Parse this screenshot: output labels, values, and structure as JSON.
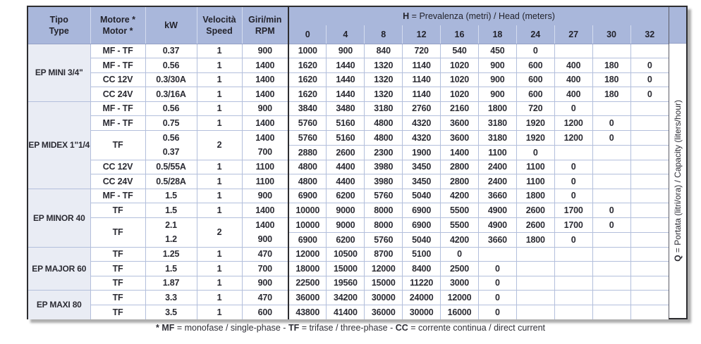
{
  "header": {
    "tipo": [
      "Tipo",
      "Type"
    ],
    "motore": [
      "Motore *",
      "Motor *"
    ],
    "kw": "kW",
    "velocita": [
      "Velocità",
      "Speed"
    ],
    "giri": [
      "Giri/min",
      "RPM"
    ],
    "head_title_bold": "H",
    "head_title_rest": " = Prevalenza (metri) / Head (meters)",
    "head_cols": [
      "0",
      "4",
      "8",
      "12",
      "16",
      "18",
      "24",
      "27",
      "30",
      "32"
    ]
  },
  "q_axis": {
    "bold": "Q",
    "rest": " = Portata (litri/ora) / Capacity (liters/hour)"
  },
  "sections": [
    {
      "name": "EP MINI 3/4\"",
      "rows": [
        {
          "motor": "MF - TF",
          "kw": "0.37",
          "speed": "1",
          "rpm": "900",
          "values": [
            "1000",
            "900",
            "840",
            "720",
            "540",
            "450",
            "0",
            "",
            "",
            ""
          ]
        },
        {
          "motor": "MF - TF",
          "kw": "0.56",
          "speed": "1",
          "rpm": "1400",
          "values": [
            "1620",
            "1440",
            "1320",
            "1140",
            "1020",
            "900",
            "600",
            "400",
            "180",
            "0"
          ]
        },
        {
          "motor": "CC 12V",
          "kw": "0.3/30A",
          "speed": "1",
          "rpm": "1400",
          "values": [
            "1620",
            "1440",
            "1320",
            "1140",
            "1020",
            "900",
            "600",
            "400",
            "180",
            "0"
          ]
        },
        {
          "motor": "CC 24V",
          "kw": "0.3/16A",
          "speed": "1",
          "rpm": "1400",
          "values": [
            "1620",
            "1440",
            "1320",
            "1140",
            "1020",
            "900",
            "600",
            "400",
            "180",
            "0"
          ]
        }
      ]
    },
    {
      "name": "EP MIDEX 1\"1/4",
      "rows": [
        {
          "motor": "MF - TF",
          "kw": "0.56",
          "speed": "1",
          "rpm": "900",
          "values": [
            "3840",
            "3480",
            "3180",
            "2760",
            "2160",
            "1800",
            "720",
            "0",
            "",
            ""
          ]
        },
        {
          "motor": "MF - TF",
          "kw": "0.75",
          "speed": "1",
          "rpm": "1400",
          "values": [
            "5760",
            "5160",
            "4800",
            "4320",
            "3600",
            "3180",
            "1920",
            "1200",
            "0",
            ""
          ]
        },
        {
          "dual": true,
          "motor": "TF",
          "kw": [
            "0.56",
            "0.37"
          ],
          "speed": "2",
          "rpm": [
            "1400",
            "700"
          ],
          "values_a": [
            "5760",
            "5160",
            "4800",
            "4320",
            "3600",
            "3180",
            "1920",
            "1200",
            "0",
            ""
          ],
          "values_b": [
            "2880",
            "2600",
            "2300",
            "1900",
            "1400",
            "1100",
            "0",
            "",
            "",
            ""
          ]
        },
        {
          "motor": "CC 12V",
          "kw": "0.5/55A",
          "speed": "1",
          "rpm": "1100",
          "values": [
            "4800",
            "4400",
            "3980",
            "3450",
            "2800",
            "2400",
            "1100",
            "0",
            "",
            ""
          ]
        },
        {
          "motor": "CC 24V",
          "kw": "0.5/28A",
          "speed": "1",
          "rpm": "1100",
          "values": [
            "4800",
            "4400",
            "3980",
            "3450",
            "2800",
            "2400",
            "1100",
            "0",
            "",
            ""
          ]
        }
      ]
    },
    {
      "name": "EP MINOR 40",
      "rows": [
        {
          "motor": "MF - TF",
          "kw": "1.5",
          "speed": "1",
          "rpm": "900",
          "values": [
            "6900",
            "6200",
            "5760",
            "5040",
            "4200",
            "3660",
            "1800",
            "0",
            "",
            ""
          ]
        },
        {
          "motor": "TF",
          "kw": "1.5",
          "speed": "1",
          "rpm": "1400",
          "values": [
            "10000",
            "9000",
            "8000",
            "6900",
            "5500",
            "4900",
            "2600",
            "1700",
            "0",
            ""
          ]
        },
        {
          "dual": true,
          "motor": "TF",
          "kw": [
            "2.1",
            "1.2"
          ],
          "speed": "2",
          "rpm": [
            "1400",
            "900"
          ],
          "values_a": [
            "10000",
            "9000",
            "8000",
            "6900",
            "5500",
            "4900",
            "2600",
            "1700",
            "0",
            ""
          ],
          "values_b": [
            "6900",
            "6200",
            "5760",
            "5040",
            "4200",
            "3660",
            "1800",
            "0",
            "",
            ""
          ]
        }
      ]
    },
    {
      "name": "EP MAJOR 60",
      "rows": [
        {
          "motor": "TF",
          "kw": "1.25",
          "speed": "1",
          "rpm": "470",
          "values": [
            "12000",
            "10500",
            "8700",
            "5100",
            "0",
            "",
            "",
            "",
            "",
            ""
          ]
        },
        {
          "motor": "TF",
          "kw": "1.5",
          "speed": "1",
          "rpm": "700",
          "values": [
            "18000",
            "15000",
            "12000",
            "8400",
            "2500",
            "0",
            "",
            "",
            "",
            ""
          ]
        },
        {
          "motor": "TF",
          "kw": "1.87",
          "speed": "1",
          "rpm": "900",
          "values": [
            "22500",
            "19560",
            "15000",
            "11220",
            "3000",
            "0",
            "",
            "",
            "",
            ""
          ]
        }
      ]
    },
    {
      "name": "EP MAXI 80",
      "rows": [
        {
          "motor": "TF",
          "kw": "3.3",
          "speed": "1",
          "rpm": "470",
          "values": [
            "36000",
            "34200",
            "30000",
            "24000",
            "12000",
            "0",
            "",
            "",
            "",
            ""
          ]
        },
        {
          "motor": "TF",
          "kw": "3.5",
          "speed": "1",
          "rpm": "600",
          "values": [
            "43800",
            "41400",
            "36000",
            "30000",
            "16000",
            "0",
            "",
            "",
            "",
            ""
          ]
        }
      ]
    }
  ],
  "footnote": {
    "parts": [
      {
        "bold": "* MF"
      },
      {
        "text": " = monofase / single-phase - "
      },
      {
        "bold": "TF"
      },
      {
        "text": " = trifase / three-phase - "
      },
      {
        "bold": "CC"
      },
      {
        "text": " = corrente continua / direct current"
      }
    ]
  },
  "colors": {
    "header_blue": "#a9b7db",
    "type_column_bg": "#e9ecf4",
    "grid_line": "#b3bfdc",
    "dark_border": "#2d2d30"
  }
}
